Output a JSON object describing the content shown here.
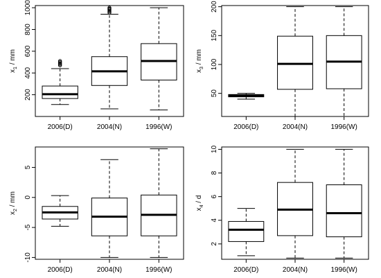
{
  "chart_data": [
    {
      "type": "box",
      "ylabel": {
        "var": "x",
        "sub": "1",
        "unit": "/ mm"
      },
      "categories": [
        "2006(D)",
        "2004(N)",
        "1996(W)"
      ],
      "ylim": [
        0,
        1020
      ],
      "yticks": [
        200,
        400,
        600,
        800,
        1000
      ],
      "boxes": [
        {
          "name": "2006(D)",
          "whisker_low": 110,
          "q1": 165,
          "median": 205,
          "q3": 280,
          "whisker_high": 440,
          "outliers": [
            470,
            480,
            490,
            500,
            510
          ]
        },
        {
          "name": "2004(N)",
          "whisker_low": 70,
          "q1": 285,
          "median": 415,
          "q3": 550,
          "whisker_high": 940,
          "outliers": [
            955,
            965,
            975,
            985,
            992,
            1000
          ]
        },
        {
          "name": "1996(W)",
          "whisker_low": 60,
          "q1": 335,
          "median": 510,
          "q3": 670,
          "whisker_high": 1000,
          "outliers": []
        }
      ]
    },
    {
      "type": "box",
      "ylabel": {
        "var": "x",
        "sub": "3",
        "unit": "/ mm"
      },
      "categories": [
        "2006(D)",
        "2004(N)",
        "1996(W)"
      ],
      "ylim": [
        10,
        202
      ],
      "yticks": [
        50,
        100,
        150,
        200
      ],
      "boxes": [
        {
          "name": "2006(D)",
          "whisker_low": 40,
          "q1": 44,
          "median": 46,
          "q3": 48,
          "whisker_high": 50,
          "outliers": []
        },
        {
          "name": "2004(N)",
          "whisker_low": 10,
          "q1": 57,
          "median": 101,
          "q3": 149,
          "whisker_high": 200,
          "outliers": []
        },
        {
          "name": "1996(W)",
          "whisker_low": 10,
          "q1": 58,
          "median": 105,
          "q3": 150,
          "whisker_high": 200,
          "outliers": []
        }
      ]
    },
    {
      "type": "box",
      "ylabel": {
        "var": "x",
        "sub": "2",
        "unit": "/ mm"
      },
      "categories": [
        "2006(D)",
        "2004(N)",
        "1996(W)"
      ],
      "ylim": [
        -10.3,
        8.4
      ],
      "yticks": [
        -10,
        -5,
        0,
        5
      ],
      "boxes": [
        {
          "name": "2006(D)",
          "whisker_low": -4.8,
          "q1": -3.6,
          "median": -2.5,
          "q3": -1.5,
          "whisker_high": 0.3,
          "outliers": []
        },
        {
          "name": "2004(N)",
          "whisker_low": -10,
          "q1": -6.4,
          "median": -3.2,
          "q3": -0.1,
          "whisker_high": 6.3,
          "outliers": []
        },
        {
          "name": "1996(W)",
          "whisker_low": -10,
          "q1": -6.4,
          "median": -2.9,
          "q3": 0.4,
          "whisker_high": 8.1,
          "outliers": []
        }
      ]
    },
    {
      "type": "box",
      "ylabel": {
        "var": "x",
        "sub": "4",
        "unit": "/ d"
      },
      "categories": [
        "2006(D)",
        "2004(N)",
        "1996(W)"
      ],
      "ylim": [
        0.7,
        10.2
      ],
      "yticks": [
        2,
        4,
        6,
        8,
        10
      ],
      "boxes": [
        {
          "name": "2006(D)",
          "whisker_low": 1.0,
          "q1": 2.2,
          "median": 3.2,
          "q3": 3.9,
          "whisker_high": 5.0,
          "outliers": []
        },
        {
          "name": "2004(N)",
          "whisker_low": 0.8,
          "q1": 2.7,
          "median": 4.9,
          "q3": 7.2,
          "whisker_high": 10.0,
          "outliers": []
        },
        {
          "name": "1996(W)",
          "whisker_low": 0.8,
          "q1": 2.6,
          "median": 4.6,
          "q3": 7.0,
          "whisker_high": 10.0,
          "outliers": []
        }
      ]
    }
  ]
}
